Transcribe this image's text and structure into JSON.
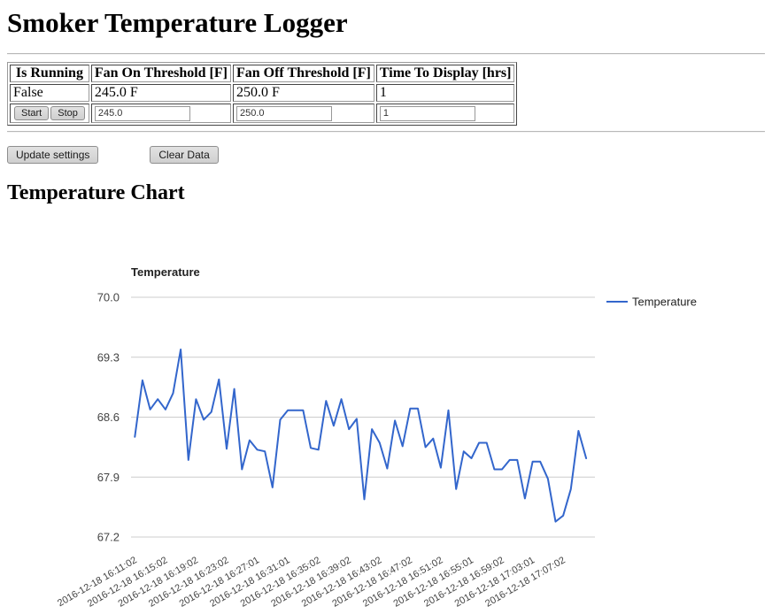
{
  "page": {
    "title": "Smoker Temperature Logger",
    "chart_heading": "Temperature Chart"
  },
  "status_table": {
    "headers": [
      "Is Running",
      "Fan On Threshold [F]",
      "Fan Off Threshold [F]",
      "Time To Display [hrs]"
    ],
    "values": [
      "False",
      "245.0 F",
      "250.0 F",
      "1"
    ],
    "controls": {
      "start_label": "Start",
      "stop_label": "Stop",
      "fan_on_input": "245.0",
      "fan_off_input": "250.0",
      "time_input": "1"
    }
  },
  "actions": {
    "update_label": "Update settings",
    "clear_label": "Clear Data"
  },
  "chart_data": {
    "type": "line",
    "title": "Temperature",
    "legend": [
      "Temperature"
    ],
    "legend_position": "right",
    "series_color": "#3366CC",
    "grid_color": "#CCCCCC",
    "axis_text_color": "#444444",
    "title_text_color": "#222222",
    "ylim": [
      67.2,
      70.0
    ],
    "y_ticks": [
      70.0,
      69.3,
      68.6,
      67.9,
      67.2
    ],
    "x_tick_every": 4,
    "x_tick_labels": [
      "2016-12-18 16:11:02",
      "2016-12-18 16:15:02",
      "2016-12-18 16:19:02",
      "2016-12-18 16:23:02",
      "2016-12-18 16:27:01",
      "2016-12-18 16:31:01",
      "2016-12-18 16:35:02",
      "2016-12-18 16:39:02",
      "2016-12-18 16:43:02",
      "2016-12-18 16:47:02",
      "2016-12-18 16:51:02",
      "2016-12-18 16:55:01",
      "2016-12-18 16:59:02",
      "2016-12-18 17:03:01",
      "2016-12-18 17:07:02"
    ],
    "x_minute_interval": 1,
    "series": [
      {
        "name": "Temperature",
        "values": [
          68.37,
          69.03,
          68.69,
          68.81,
          68.69,
          68.88,
          69.39,
          68.1,
          68.81,
          68.57,
          68.66,
          69.04,
          68.23,
          68.93,
          67.99,
          68.33,
          68.22,
          68.2,
          67.78,
          68.57,
          68.68,
          68.68,
          68.68,
          68.24,
          68.22,
          68.79,
          68.5,
          68.81,
          68.46,
          68.58,
          67.64,
          68.46,
          68.3,
          68.0,
          68.56,
          68.26,
          68.7,
          68.7,
          68.25,
          68.35,
          68.01,
          68.68,
          67.76,
          68.2,
          68.12,
          68.3,
          68.3,
          67.99,
          67.99,
          68.1,
          68.1,
          67.65,
          68.08,
          68.08,
          67.88,
          67.38,
          67.45,
          67.76,
          68.44,
          68.12
        ]
      }
    ]
  }
}
